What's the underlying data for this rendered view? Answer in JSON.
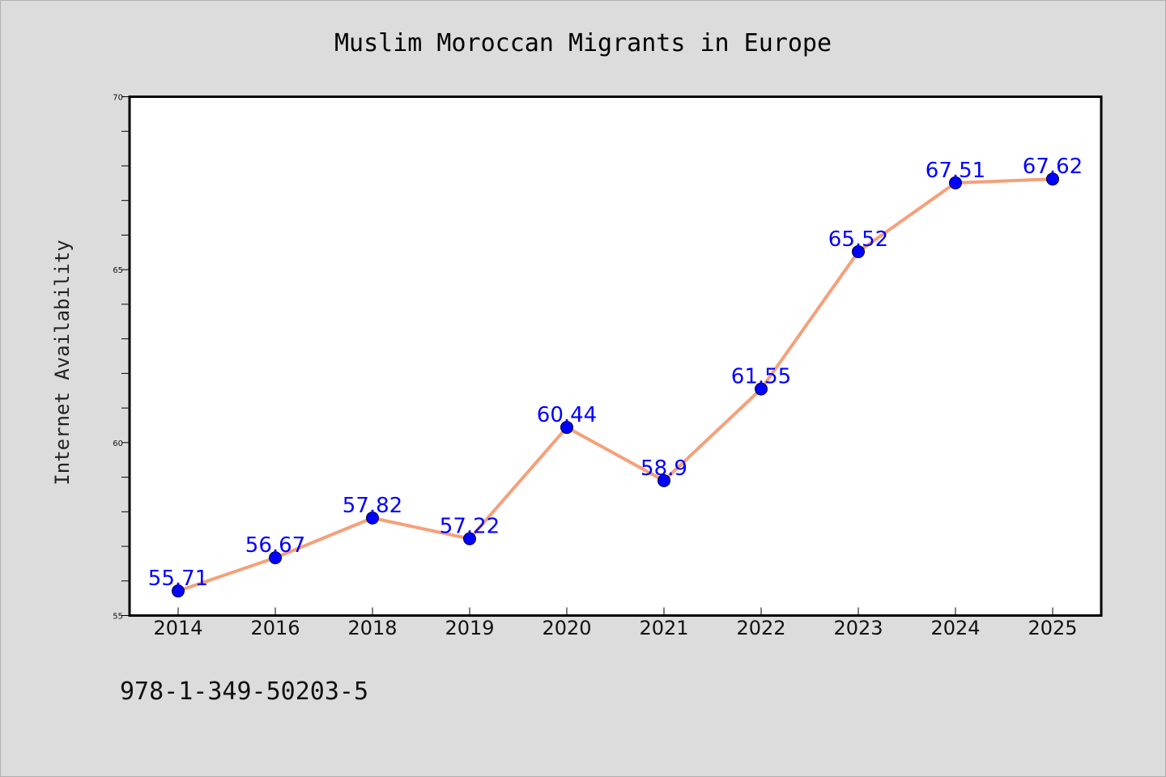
{
  "chart_data": {
    "type": "line",
    "title": "Muslim Moroccan Migrants in Europe",
    "xlabel": "",
    "ylabel": "Internet Availability",
    "categories": [
      "2014",
      "2016",
      "2018",
      "2019",
      "2020",
      "2021",
      "2022",
      "2023",
      "2024",
      "2025"
    ],
    "series": [
      {
        "values": [
          55.71,
          56.67,
          57.82,
          57.22,
          60.44,
          58.9,
          61.55,
          65.52,
          67.51,
          67.62
        ],
        "labels": [
          "55.71",
          "56.67",
          "57.82",
          "57.22",
          "60.44",
          "58.9",
          "61.55",
          "65.52",
          "67.51",
          "67.62"
        ],
        "line_color": "#f5a07a",
        "marker_color": "#0000ff"
      }
    ],
    "ylim": [
      55,
      70
    ],
    "yticks": [
      "55",
      "60",
      "65",
      "70"
    ],
    "grid": false,
    "legend": "none"
  },
  "footer": {
    "isbn": "978-1-349-50203-5"
  },
  "colors": {
    "background": "#dcdcdc",
    "plot_background": "#ffffff",
    "line": "#f5a07a",
    "marker": "#0000ff",
    "data_label": "#0000ff"
  }
}
